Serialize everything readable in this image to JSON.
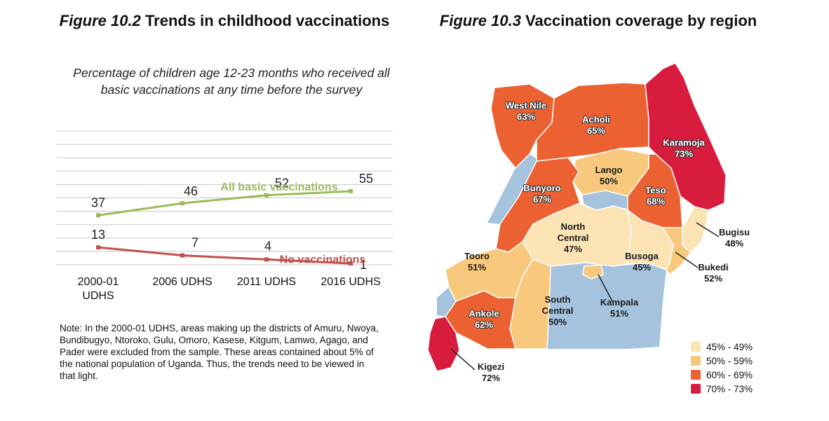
{
  "figure_left": {
    "number": "Figure 10.2",
    "title": "Trends in childhood vaccinations",
    "subtitle": "Percentage of children age 12-23 months who received all basic vaccinations at any time before the survey",
    "note": "Note: In the 2000-01 UDHS, areas making up the districts of Amuru, Nwoya, Bundibugyo, Ntoroko, Gulu, Omoro, Kasese, Kitgum, Lamwo, Agago, and Pader were excluded from the sample. These areas contained about 5% of the national population of Uganda. Thus, the trends need to be viewed in that light."
  },
  "figure_right": {
    "number": "Figure 10.3",
    "title": "Vaccination coverage by region"
  },
  "chart_data": [
    {
      "type": "line",
      "title": "Trends in childhood vaccinations",
      "categories": [
        "2000-01 UDHS",
        "2006 UDHS",
        "2011 UDHS",
        "2016 UDHS"
      ],
      "ylim": [
        0,
        100
      ],
      "grid": true,
      "series": [
        {
          "name": "All basic vaccinations",
          "values": [
            37,
            46,
            52,
            55
          ],
          "color": "#9bbb59"
        },
        {
          "name": "No vaccinations",
          "values": [
            13,
            7,
            4,
            1
          ],
          "color": "#c0504d"
        }
      ]
    },
    {
      "type": "map",
      "title": "Vaccination coverage by region",
      "legend": [
        {
          "label": "45% - 49%",
          "color": "#fbe3b4"
        },
        {
          "label": "50% - 59%",
          "color": "#f8c87d"
        },
        {
          "label": "60% - 69%",
          "color": "#ec6132"
        },
        {
          "label": "70% - 73%",
          "color": "#d71c3d"
        }
      ],
      "regions": [
        {
          "name": "West Nile",
          "value": "63%",
          "class": "60% - 69%"
        },
        {
          "name": "Acholi",
          "value": "65%",
          "class": "60% - 69%"
        },
        {
          "name": "Karamoja",
          "value": "73%",
          "class": "70% - 73%"
        },
        {
          "name": "Lango",
          "value": "50%",
          "class": "50% - 59%"
        },
        {
          "name": "Bunyoro",
          "value": "67%",
          "class": "60% - 69%"
        },
        {
          "name": "Teso",
          "value": "68%",
          "class": "60% - 69%"
        },
        {
          "name": "North Central",
          "value": "47%",
          "class": "45% - 49%"
        },
        {
          "name": "Bugisu",
          "value": "48%",
          "class": "45% - 49%"
        },
        {
          "name": "Tooro",
          "value": "51%",
          "class": "50% - 59%"
        },
        {
          "name": "Busoga",
          "value": "45%",
          "class": "45% - 49%"
        },
        {
          "name": "Bukedi",
          "value": "52%",
          "class": "50% - 59%"
        },
        {
          "name": "South Central",
          "value": "50%",
          "class": "50% - 59%"
        },
        {
          "name": "Kampala",
          "value": "51%",
          "class": "50% - 59%"
        },
        {
          "name": "Ankole",
          "value": "62%",
          "class": "60% - 69%"
        },
        {
          "name": "Kigezi",
          "value": "72%",
          "class": "70% - 73%"
        }
      ],
      "water_color": "#a6c3de"
    }
  ]
}
